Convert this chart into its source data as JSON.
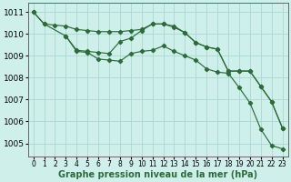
{
  "background_color": "#cff0ea",
  "grid_color": "#a8d8d0",
  "line_color": "#2d6b3c",
  "xlabel": "Graphe pression niveau de la mer (hPa)",
  "xlabel_fontsize": 7,
  "ytick_fontsize": 6.5,
  "xtick_fontsize": 5.5,
  "ylim": [
    1004.4,
    1011.4
  ],
  "xlim": [
    -0.5,
    23.5
  ],
  "yticks": [
    1005,
    1006,
    1007,
    1008,
    1009,
    1010,
    1011
  ],
  "xticks": [
    0,
    1,
    2,
    3,
    4,
    5,
    6,
    7,
    8,
    9,
    10,
    11,
    12,
    13,
    14,
    15,
    16,
    17,
    18,
    19,
    20,
    21,
    22,
    23
  ],
  "line1_x": [
    0,
    1,
    2,
    3,
    4,
    5,
    6,
    7,
    8,
    9,
    10,
    11,
    12,
    13,
    14,
    15,
    16,
    17,
    18,
    19,
    20,
    21,
    22,
    23
  ],
  "line1_y": [
    1011.0,
    1010.45,
    1010.4,
    1010.35,
    1010.2,
    1010.15,
    1010.1,
    1010.1,
    1010.1,
    1010.15,
    1010.2,
    1010.45,
    1010.45,
    1010.3,
    1010.05,
    1009.6,
    1009.4,
    1009.3,
    1008.3,
    1008.3,
    1008.3,
    1007.6,
    1006.9,
    1005.7
  ],
  "line2_x": [
    0,
    1,
    3,
    4,
    5,
    6,
    7,
    8,
    9,
    10,
    11,
    12,
    13,
    14,
    15,
    16,
    17,
    18,
    19,
    20,
    21,
    22,
    23
  ],
  "line2_y": [
    1011.0,
    1010.45,
    1009.9,
    1009.25,
    1009.2,
    1009.15,
    1009.1,
    1009.65,
    1009.8,
    1010.15,
    1010.45,
    1010.45,
    1010.35,
    1010.05,
    1009.6,
    1009.4,
    1009.3,
    1008.3,
    1008.3,
    1008.3,
    1007.6,
    1006.9,
    1005.7
  ],
  "line3_x": [
    3,
    4,
    5,
    6,
    7,
    8,
    9,
    10,
    11,
    12,
    13,
    14,
    15,
    16,
    17,
    18,
    19,
    20,
    21,
    22,
    23
  ],
  "line3_y": [
    1009.9,
    1009.2,
    1009.15,
    1008.85,
    1008.8,
    1008.75,
    1009.1,
    1009.2,
    1009.25,
    1009.45,
    1009.2,
    1009.0,
    1008.8,
    1008.4,
    1008.25,
    1008.2,
    1007.55,
    1006.85,
    1005.65,
    1004.9,
    1004.75
  ]
}
